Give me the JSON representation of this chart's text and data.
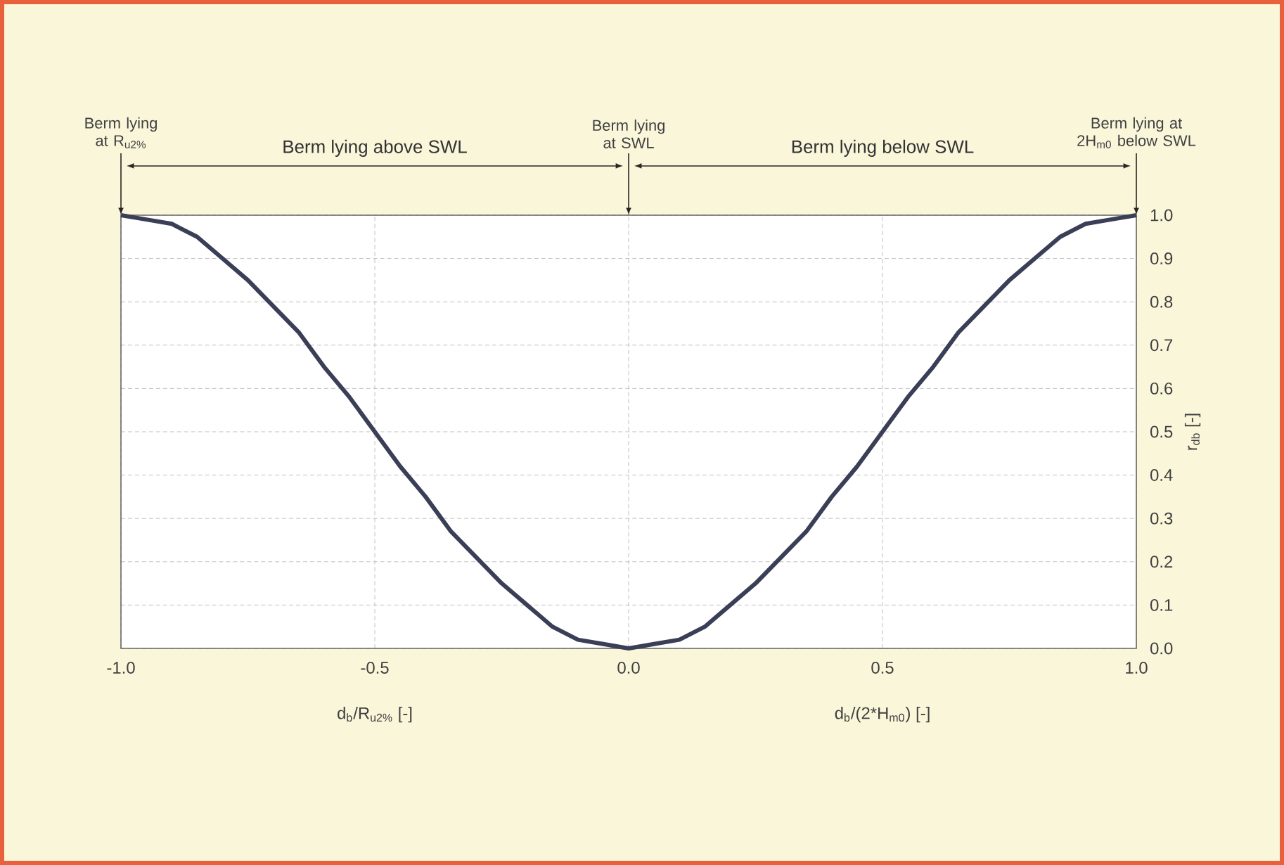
{
  "chart_data": {
    "type": "line",
    "xlabel": "d$_{b}$/R$_{u2%}$ [-]",
    "ylabel": "r$_{db}$ [-]",
    "x": [
      -1.0,
      -0.95,
      -0.9,
      -0.85,
      -0.8,
      -0.75,
      -0.7,
      -0.65,
      -0.6,
      -0.55,
      -0.5,
      -0.45,
      -0.4,
      -0.35,
      -0.3,
      -0.25,
      -0.2,
      -0.15,
      -0.1,
      -0.05,
      0.0,
      0.05,
      0.1,
      0.15,
      0.2,
      0.25,
      0.3,
      0.35,
      0.4,
      0.45,
      0.5,
      0.55,
      0.6,
      0.65,
      0.7,
      0.75,
      0.8,
      0.85,
      0.9,
      0.95,
      1.0
    ],
    "series": [
      {
        "color": "#3a3e56",
        "values": [
          1.0,
          0.99,
          0.98,
          0.95,
          0.9,
          0.85,
          0.79,
          0.73,
          0.65,
          0.58,
          0.5,
          0.42,
          0.35,
          0.27,
          0.21,
          0.15,
          0.1,
          0.05,
          0.02,
          0.01,
          0.0,
          0.01,
          0.02,
          0.05,
          0.1,
          0.15,
          0.21,
          0.27,
          0.35,
          0.42,
          0.5,
          0.58,
          0.65,
          0.73,
          0.79,
          0.85,
          0.9,
          0.95,
          0.98,
          0.99,
          1.0
        ]
      }
    ],
    "xlim": [
      -1.0,
      1.0
    ],
    "xticks": [
      {
        "value": -1.0,
        "label": "-1.0"
      },
      {
        "value": -0.5,
        "label": "-0.5"
      },
      {
        "value": 0.0,
        "label": "0.0"
      },
      {
        "value": 0.5,
        "label": "0.5"
      },
      {
        "value": 1.0,
        "label": "1.0"
      }
    ],
    "ylim": [
      0.0,
      1.0
    ],
    "yticks": [
      {
        "value": 0.0,
        "label": "0.0"
      },
      {
        "value": 0.1,
        "label": "0.1"
      },
      {
        "value": 0.2,
        "label": "0.2"
      },
      {
        "value": 0.3,
        "label": "0.3"
      },
      {
        "value": 0.4,
        "label": "0.4"
      },
      {
        "value": 0.5,
        "label": "0.5"
      },
      {
        "value": 0.6,
        "label": "0.6"
      },
      {
        "value": 0.7,
        "label": "0.7"
      },
      {
        "value": 0.8,
        "label": "0.8"
      },
      {
        "value": 0.9,
        "label": "0.9"
      },
      {
        "value": 1.0,
        "label": "1.0"
      }
    ],
    "grid": true,
    "line_style": "solid",
    "marker": "none",
    "annotations": [
      {
        "text": "Berm lying at R$_{u2%}$",
        "x": -1.0,
        "y": 1.0
      },
      "Berm lying above SWL",
      "Berm lying at SWL",
      "Berm lying below SWL",
      {
        "text": "Berm lying at 2H$_{m0}$ below SWL",
        "x": 1.0,
        "y": 1.0
      },
      "d$_{b}$/(2*H$_{m0}$) [-]"
    ]
  }
}
